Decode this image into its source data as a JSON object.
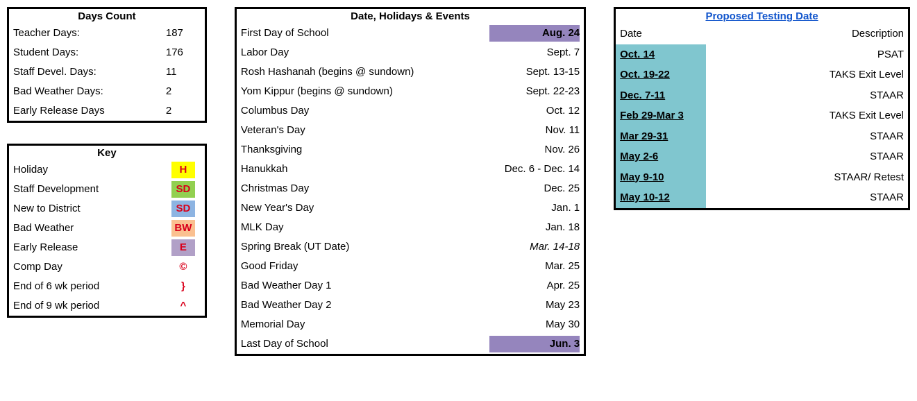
{
  "colors": {
    "border": "#000000",
    "red_text": "#d9001b",
    "link_blue": "#1155cc",
    "bg_yellow": "#ffff00",
    "bg_green": "#92d050",
    "bg_blue": "#8db4e2",
    "bg_peach": "#fac090",
    "bg_lavender": "#b1a0c7",
    "bg_purple": "#9585bd",
    "bg_teal": "#80c6cf"
  },
  "days_count": {
    "title": "Days Count",
    "rows": [
      {
        "label": "Teacher Days:",
        "value": "187"
      },
      {
        "label": "Student Days:",
        "value": "176"
      },
      {
        "label": "Staff Devel. Days:",
        "value": "11"
      },
      {
        "label": "Bad Weather Days:",
        "value": "2"
      },
      {
        "label": "Early Release Days",
        "value": "2"
      }
    ]
  },
  "key": {
    "title": "Key",
    "rows": [
      {
        "label": "Holiday",
        "code": "H",
        "bg": "#ffff00"
      },
      {
        "label": "Staff Development",
        "code": "SD",
        "bg": "#92d050"
      },
      {
        "label": "New to District",
        "code": "SD",
        "bg": "#8db4e2"
      },
      {
        "label": "Bad Weather",
        "code": "BW",
        "bg": "#fac090"
      },
      {
        "label": "Early Release",
        "code": "E",
        "bg": "#b1a0c7"
      },
      {
        "label": "Comp Day",
        "code": "©",
        "bg": ""
      },
      {
        "label": "End of 6 wk period",
        "code": "}",
        "bg": ""
      },
      {
        "label": "End of 9 wk period",
        "code": "^",
        "bg": ""
      }
    ]
  },
  "events": {
    "title": "Date, Holidays & Events",
    "rows": [
      {
        "label": "First Day of School",
        "date": "Aug. 24",
        "bold": true,
        "bg": "#9585bd"
      },
      {
        "label": "Labor Day",
        "date": "Sept. 7"
      },
      {
        "label": "Rosh Hashanah (begins @ sundown)",
        "date": "Sept. 13-15"
      },
      {
        "label": "Yom Kippur (begins @ sundown)",
        "date": "Sept. 22-23"
      },
      {
        "label": "Columbus Day",
        "date": "Oct. 12"
      },
      {
        "label": "Veteran's Day",
        "date": "Nov. 11"
      },
      {
        "label": "Thanksgiving",
        "date": "Nov. 26"
      },
      {
        "label": "Hanukkah",
        "date": "Dec. 6 - Dec. 14"
      },
      {
        "label": "Christmas Day",
        "date": "Dec. 25"
      },
      {
        "label": "New Year's Day",
        "date": "Jan. 1"
      },
      {
        "label": "MLK Day",
        "date": "Jan. 18"
      },
      {
        "label": "Spring Break (UT Date)",
        "date": "Mar. 14-18",
        "italic": true
      },
      {
        "label": "Good Friday",
        "date": "Mar. 25"
      },
      {
        "label": "Bad Weather Day 1",
        "date": "Apr. 25"
      },
      {
        "label": "Bad Weather Day 2",
        "date": "May 23"
      },
      {
        "label": "Memorial Day",
        "date": "May 30"
      },
      {
        "label": "Last Day of School",
        "date": "Jun. 3",
        "bold": true,
        "bg": "#9585bd"
      }
    ]
  },
  "testing": {
    "title": "Proposed Testing Date",
    "header_date": "Date",
    "header_desc": "Description",
    "rows": [
      {
        "date": "Oct. 14",
        "desc": "PSAT"
      },
      {
        "date": "Oct. 19-22",
        "desc": "TAKS Exit Level"
      },
      {
        "date": "Dec. 7-11",
        "desc": "STAAR"
      },
      {
        "date": "Feb 29-Mar 3",
        "desc": "TAKS Exit Level"
      },
      {
        "date": "Mar 29-31",
        "desc": "STAAR"
      },
      {
        "date": "May 2-6",
        "desc": "STAAR"
      },
      {
        "date": "May 9-10",
        "desc": "STAAR/ Retest"
      },
      {
        "date": "May 10-12",
        "desc": "STAAR"
      }
    ],
    "date_bg": "#80c6cf"
  }
}
